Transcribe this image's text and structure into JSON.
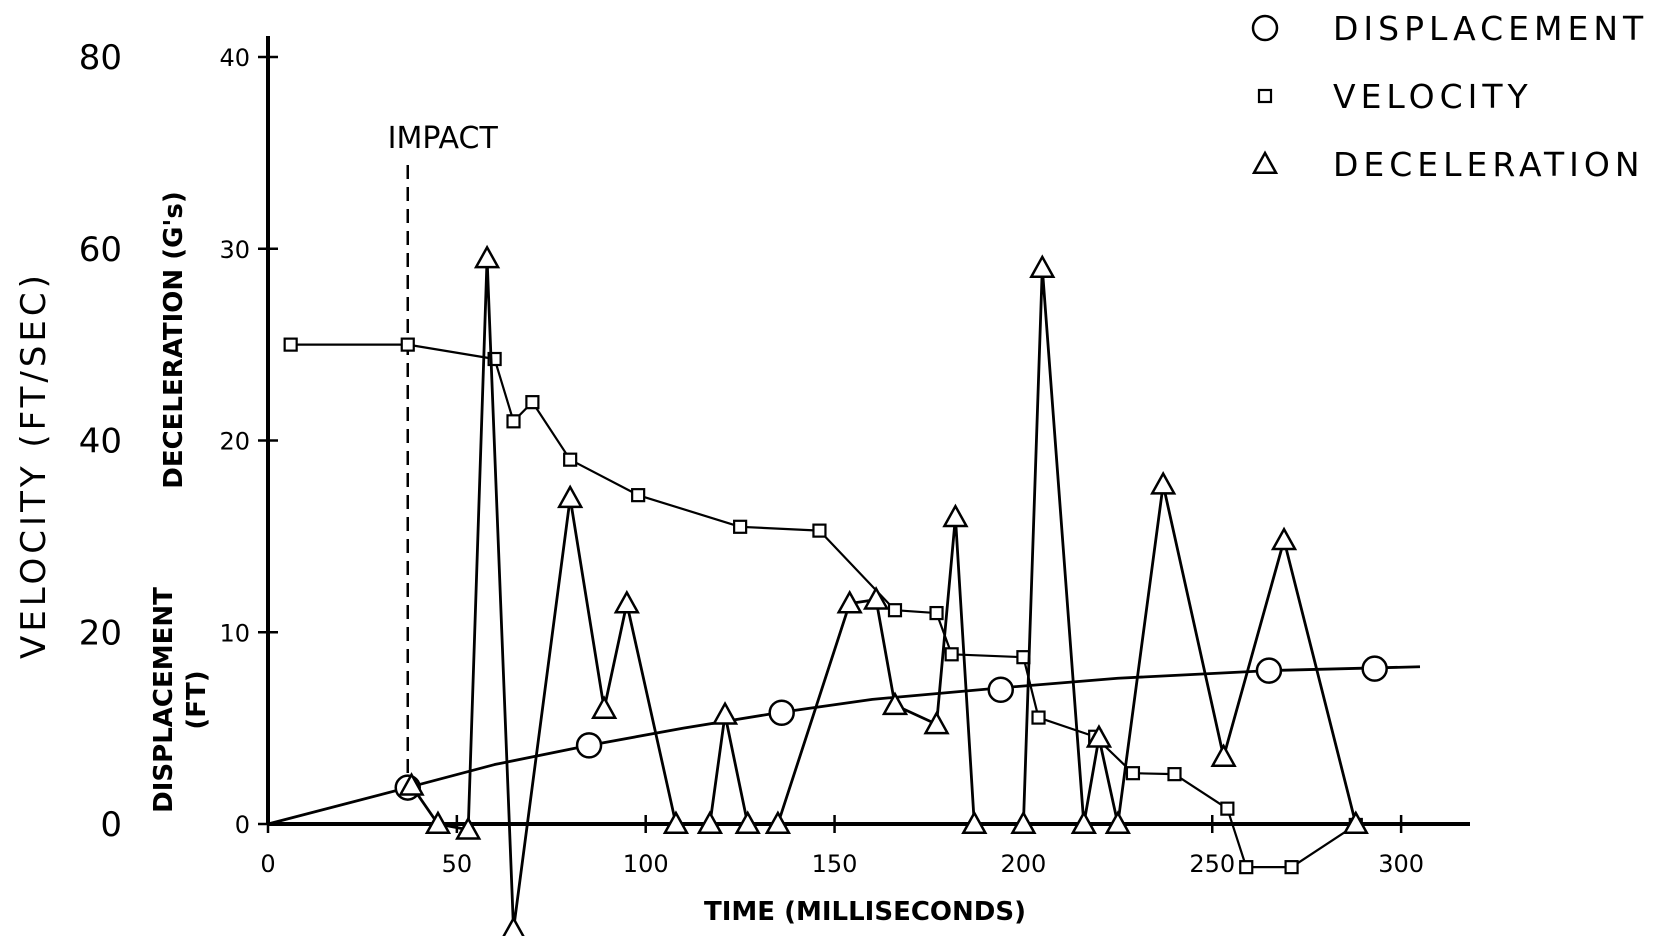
{
  "chart_data": {
    "type": "line",
    "xlabel": "TIME (MILLISECONDS)",
    "xlim": [
      0,
      305
    ],
    "x_ticks": [
      "0",
      "50",
      "100",
      "150",
      "200",
      "250",
      "300"
    ],
    "y_axes": {
      "velocity": {
        "label": "VELOCITY (FT/SEC)",
        "ylim": [
          0,
          80
        ],
        "ticks": [
          "0",
          "20",
          "40",
          "60",
          "80"
        ]
      },
      "deceleration": {
        "label": "DECELERATION (G's)",
        "ylim": [
          0,
          40
        ],
        "ticks": [
          "0",
          "10",
          "20",
          "30",
          "40"
        ]
      },
      "displacement": {
        "label_line1": "DISPLACEMENT",
        "label_line2": "(FT)"
      }
    },
    "annotations": {
      "impact_label": "IMPACT",
      "impact_time": 37
    },
    "legend": {
      "placement": "top-right",
      "entries": [
        {
          "name": "DISPLACEMENT",
          "marker": "circle"
        },
        {
          "name": "VELOCITY",
          "marker": "square"
        },
        {
          "name": "DECELERATION",
          "marker": "triangle"
        }
      ]
    },
    "grid": false,
    "series": [
      {
        "name": "DISPLACEMENT",
        "marker": "circle",
        "axis": "deceleration",
        "curve": [
          [
            0,
            0
          ],
          [
            37,
            1.9
          ],
          [
            60,
            3.1
          ],
          [
            85,
            4.1
          ],
          [
            110,
            5.0
          ],
          [
            135,
            5.8
          ],
          [
            160,
            6.5
          ],
          [
            194,
            7.1
          ],
          [
            225,
            7.6
          ],
          [
            265,
            8.0
          ],
          [
            305,
            8.2
          ]
        ],
        "points": [
          [
            37,
            1.9
          ],
          [
            85,
            4.1
          ],
          [
            136,
            5.8
          ],
          [
            194,
            7.0
          ],
          [
            265,
            8.0
          ],
          [
            293,
            8.1
          ]
        ]
      },
      {
        "name": "VELOCITY",
        "marker": "square",
        "axis": "velocity",
        "points": [
          [
            6,
            50
          ],
          [
            37,
            50
          ],
          [
            60,
            48.5
          ],
          [
            65,
            42
          ],
          [
            70,
            44
          ],
          [
            80,
            38
          ],
          [
            98,
            34.3
          ],
          [
            125,
            31
          ],
          [
            146,
            30.6
          ],
          [
            166,
            22.3
          ],
          [
            177,
            22
          ],
          [
            181,
            17.7
          ],
          [
            200,
            17.4
          ],
          [
            204,
            11.1
          ],
          [
            219,
            9.1
          ],
          [
            229,
            5.3
          ],
          [
            240,
            5.2
          ],
          [
            254,
            1.6
          ],
          [
            259,
            -4.5
          ],
          [
            271,
            -4.5
          ],
          [
            288,
            -0.1
          ]
        ]
      },
      {
        "name": "DECELERATION",
        "marker": "triangle",
        "axis": "deceleration",
        "points": [
          [
            38,
            2
          ],
          [
            45,
            0
          ],
          [
            53,
            -0.3
          ],
          [
            58,
            29.5
          ],
          [
            65,
            -5.5
          ],
          [
            80,
            17
          ],
          [
            89,
            6
          ],
          [
            95,
            11.5
          ],
          [
            108,
            0
          ],
          [
            117,
            0
          ],
          [
            121,
            5.7
          ],
          [
            127,
            0
          ],
          [
            135,
            0
          ],
          [
            154,
            11.5
          ],
          [
            161,
            11.7
          ],
          [
            166,
            6.2
          ],
          [
            177,
            5.2
          ],
          [
            182,
            16
          ],
          [
            187,
            0
          ],
          [
            200,
            0
          ],
          [
            205,
            29
          ],
          [
            216,
            0
          ],
          [
            220,
            4.5
          ],
          [
            225,
            0
          ],
          [
            237,
            17.7
          ],
          [
            253,
            3.5
          ],
          [
            269,
            14.8
          ],
          [
            288,
            0
          ]
        ]
      }
    ]
  }
}
